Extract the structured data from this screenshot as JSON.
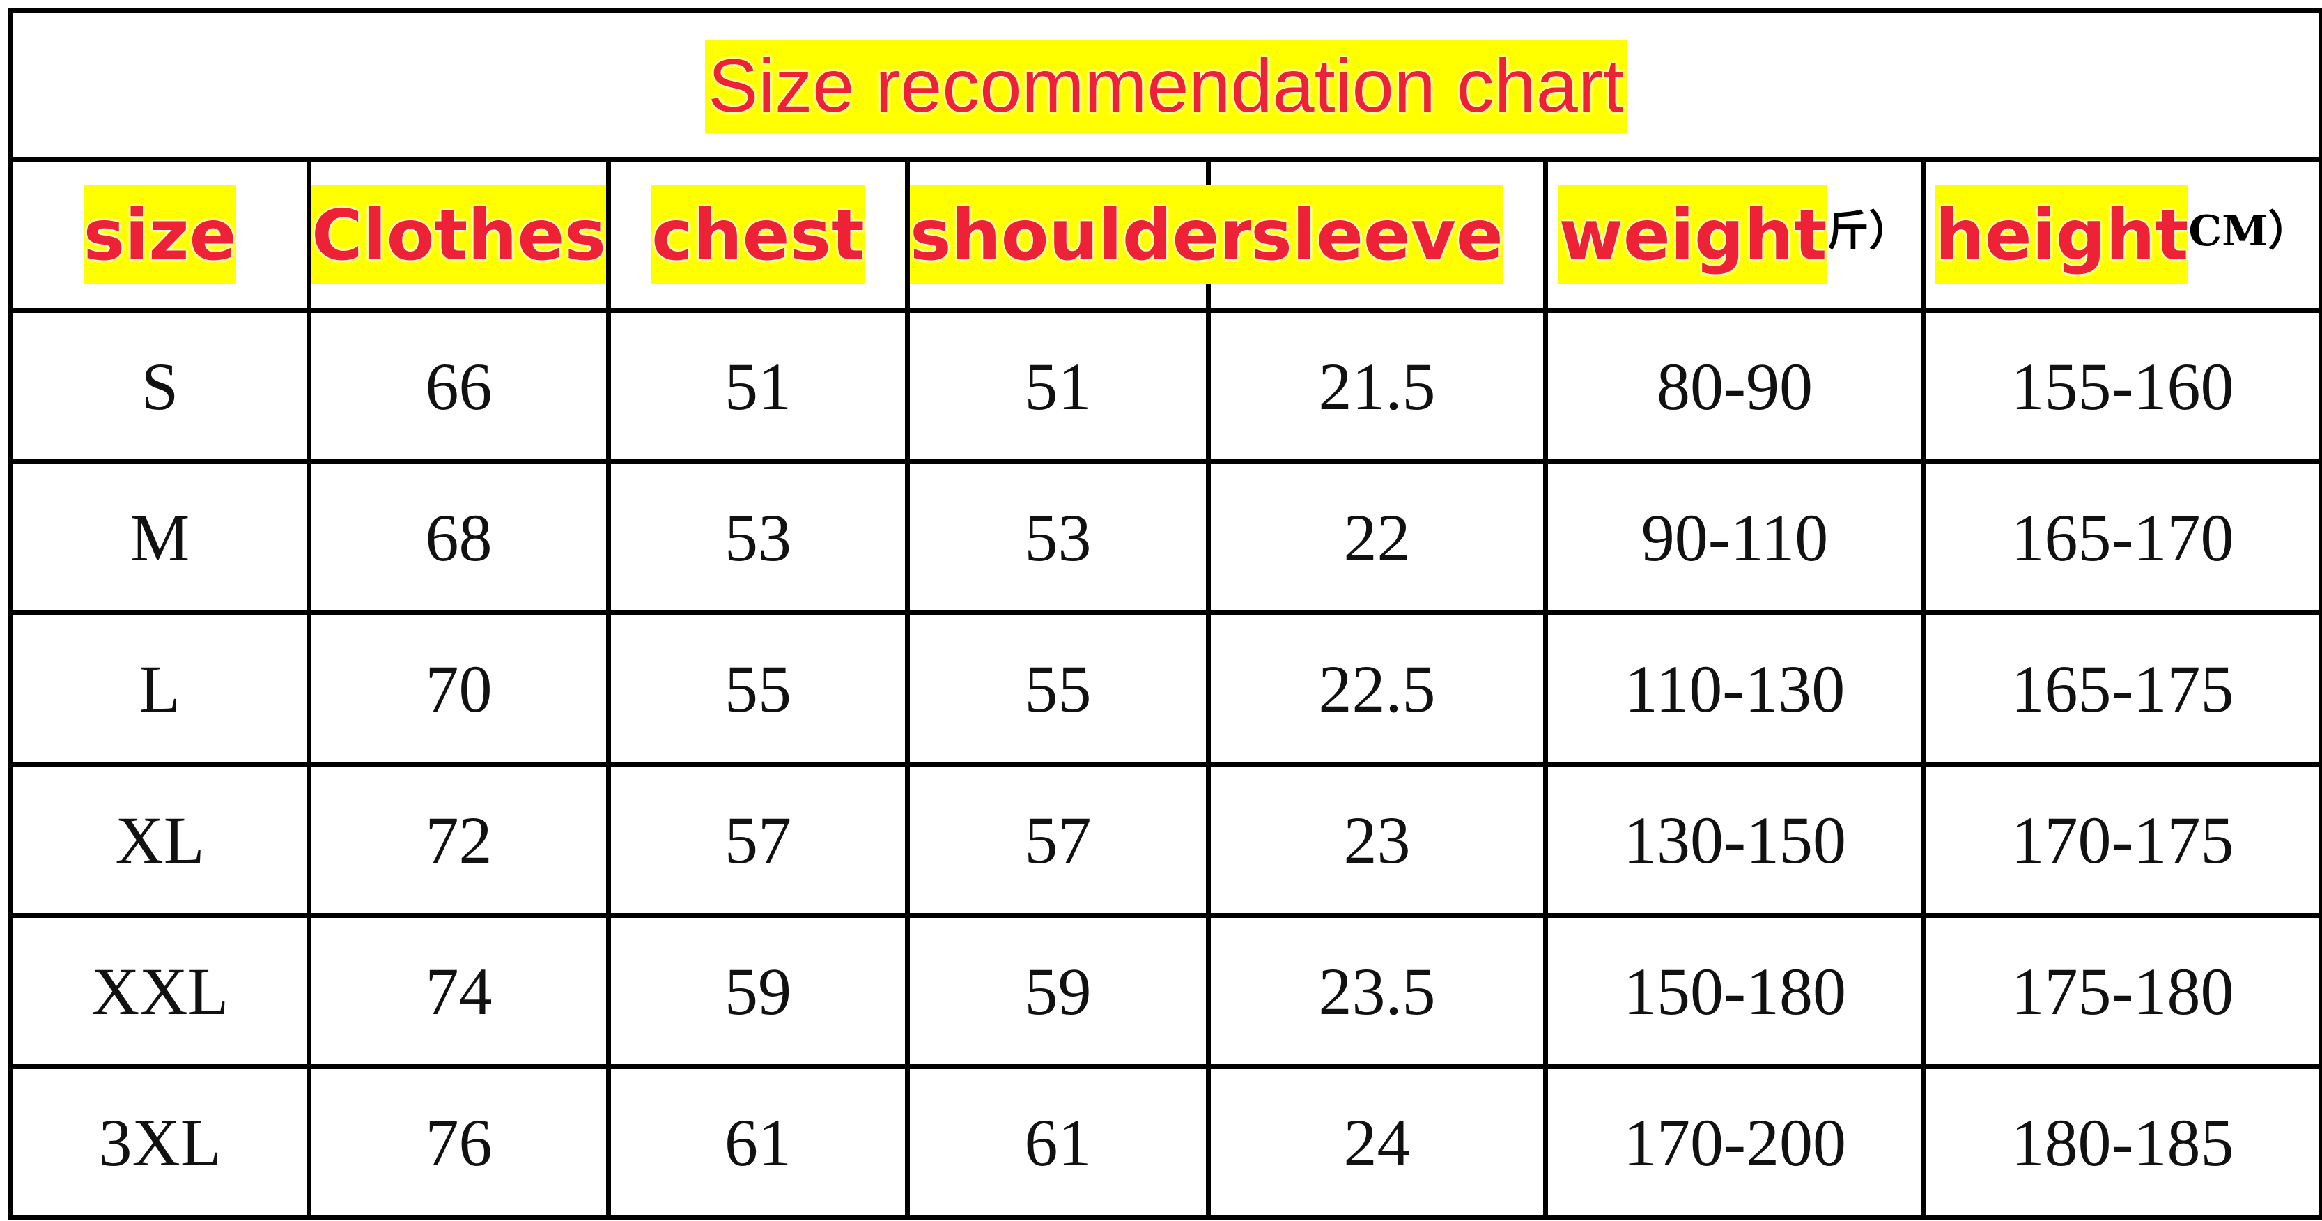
{
  "title": "Size recommendation chart",
  "colors": {
    "text_red": "#ee2236",
    "highlight": "#ffff00",
    "border": "#000000"
  },
  "headers": [
    {
      "label": "size",
      "suffix": ""
    },
    {
      "label": "Clothes",
      "suffix": ""
    },
    {
      "label": "chest",
      "suffix": ""
    },
    {
      "label": "shoulder",
      "suffix": ""
    },
    {
      "label": "sleeve",
      "suffix": ""
    },
    {
      "label": "weight",
      "suffix": "斤）"
    },
    {
      "label": "height",
      "suffix": "CM）"
    }
  ],
  "rows": [
    [
      "S",
      "66",
      "51",
      "51",
      "21.5",
      "80-90",
      "155-160"
    ],
    [
      "M",
      "68",
      "53",
      "53",
      "22",
      "90-110",
      "165-170"
    ],
    [
      "L",
      "70",
      "55",
      "55",
      "22.5",
      "110-130",
      "165-175"
    ],
    [
      "XL",
      "72",
      "57",
      "57",
      "23",
      "130-150",
      "170-175"
    ],
    [
      "XXL",
      "74",
      "59",
      "59",
      "23.5",
      "150-180",
      "175-180"
    ],
    [
      "3XL",
      "76",
      "61",
      "61",
      "24",
      "170-200",
      "180-185"
    ]
  ]
}
